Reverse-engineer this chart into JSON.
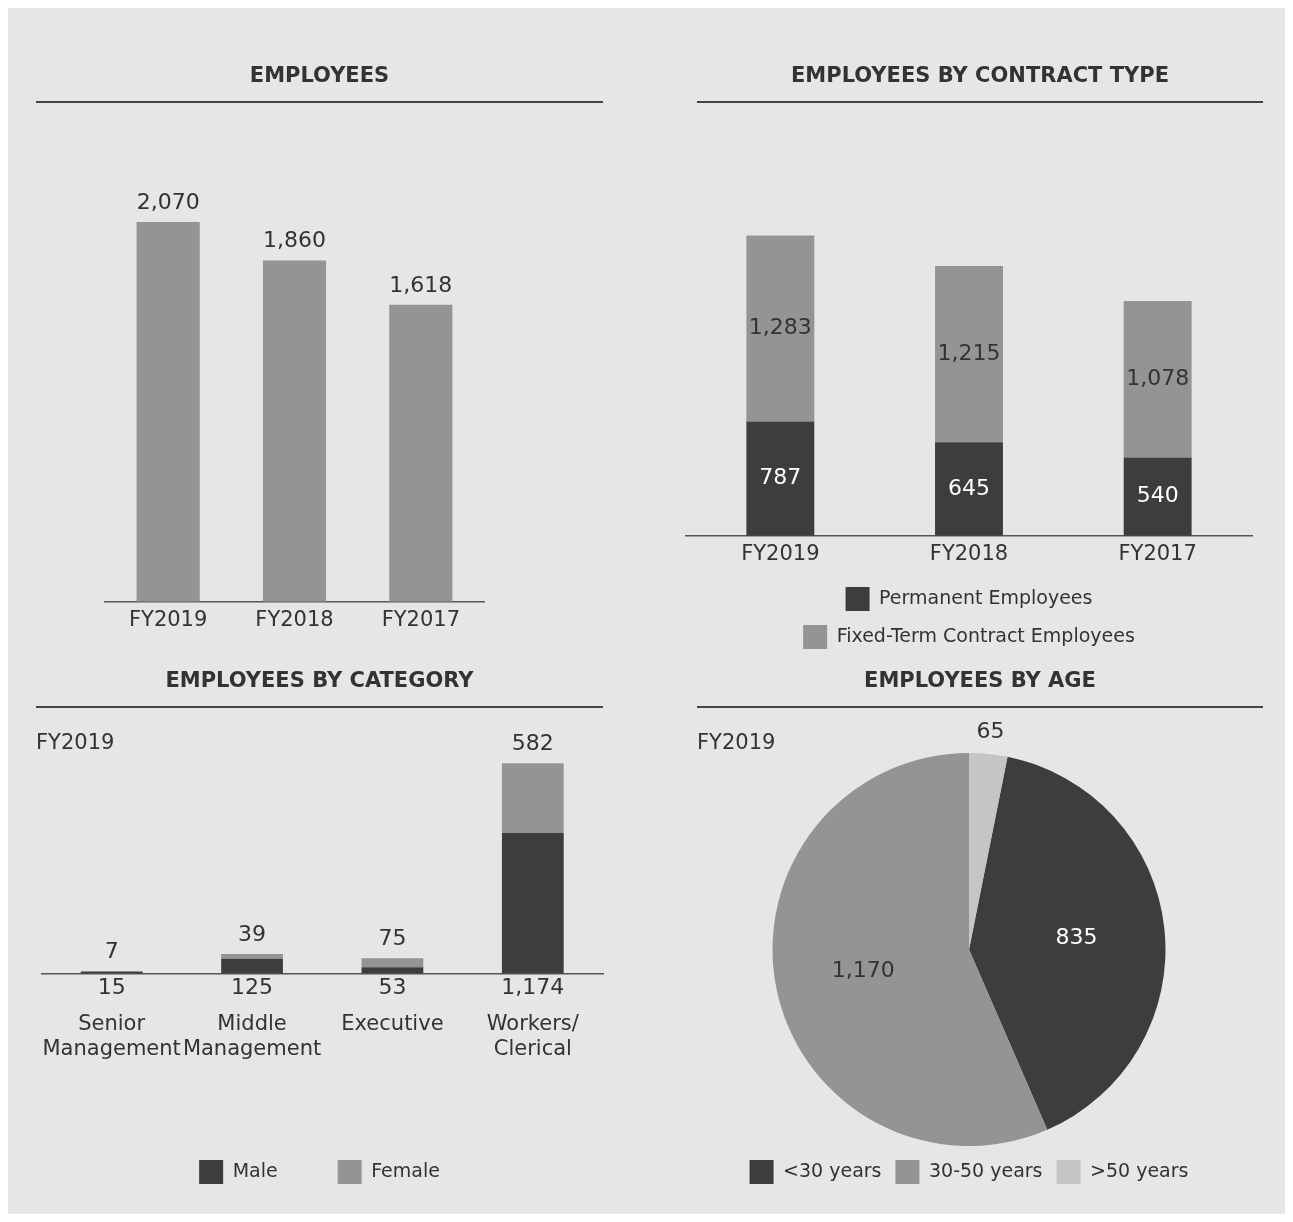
{
  "chart_data": [
    {
      "type": "bar",
      "title": "EMPLOYEES",
      "categories": [
        "FY2019",
        "FY2018",
        "FY2017"
      ],
      "values": [
        2070,
        1860,
        1618
      ],
      "value_labels": [
        "2,070",
        "1,860",
        "1,618"
      ],
      "color": "#939496"
    },
    {
      "type": "bar",
      "title": "EMPLOYEES BY CONTRACT TYPE",
      "categories": [
        "FY2019",
        "FY2018",
        "FY2017"
      ],
      "stacked": true,
      "legend": "bottom",
      "series": [
        {
          "name": "Permanent Employees",
          "color": "#3d3d3e",
          "values": [
            787,
            645,
            540
          ],
          "value_labels": [
            "787",
            "645",
            "540"
          ]
        },
        {
          "name": "Fixed-Term Contract Employees",
          "color": "#939496",
          "values": [
            1283,
            1215,
            1078
          ],
          "value_labels": [
            "1,283",
            "1,215",
            "1,078"
          ]
        }
      ]
    },
    {
      "type": "bar",
      "title": "EMPLOYEES BY CATEGORY",
      "subtitle": "FY2019",
      "categories": [
        "Senior Management",
        "Middle Management",
        "Executive",
        "Workers/Clerical"
      ],
      "stacked": true,
      "legend": "bottom",
      "series": [
        {
          "name": "Male",
          "color": "#3d3d3e",
          "values": [
            15,
            125,
            53,
            1174
          ],
          "value_labels": [
            "15",
            "125",
            "53",
            "1,174"
          ]
        },
        {
          "name": "Female",
          "color": "#939496",
          "values": [
            7,
            39,
            75,
            582
          ],
          "value_labels": [
            "7",
            "39",
            "75",
            "582"
          ]
        }
      ]
    },
    {
      "type": "pie",
      "title": "EMPLOYEES BY AGE",
      "subtitle": "FY2019",
      "categories": [
        "<30 years",
        "30-50 years",
        ">50 years"
      ],
      "values": [
        835,
        1170,
        65
      ],
      "value_labels": [
        "835",
        "1,170",
        "65"
      ],
      "colors": [
        "#3d3d3e",
        "#939496",
        "#c4c5c7"
      ],
      "legend": "bottom"
    }
  ]
}
